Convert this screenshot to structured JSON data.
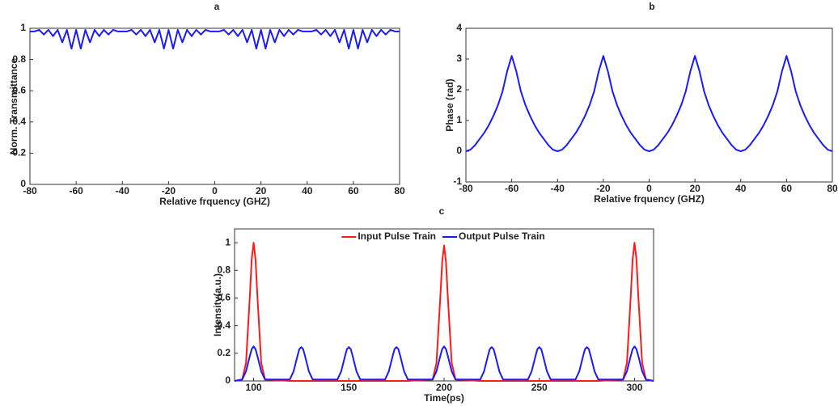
{
  "chart_data": [
    {
      "type": "line",
      "title": "a",
      "xlabel": "Relative frquency (GHZ)",
      "ylabel": "Norm. Transmittance",
      "color": "#1a1aff",
      "x": [
        -80,
        -78,
        -76,
        -74,
        -72,
        -70,
        -68,
        -66,
        -64,
        -62,
        -60,
        -58,
        -56,
        -54,
        -52,
        -50,
        -48,
        -46,
        -44,
        -42,
        -40,
        -38,
        -36,
        -34,
        -32,
        -30,
        -28,
        -26,
        -24,
        -22,
        -20,
        -18,
        -16,
        -14,
        -12,
        -10,
        -8,
        -6,
        -4,
        -2,
        0,
        2,
        4,
        6,
        8,
        10,
        12,
        14,
        16,
        18,
        20,
        22,
        24,
        26,
        28,
        30,
        32,
        34,
        36,
        38,
        40,
        42,
        44,
        46,
        48,
        50,
        52,
        54,
        56,
        58,
        60,
        62,
        64,
        66,
        68,
        70,
        72,
        74,
        76,
        78,
        80
      ],
      "values": [
        0.98,
        0.98,
        0.99,
        0.96,
        0.99,
        0.95,
        0.99,
        0.91,
        0.99,
        0.87,
        0.99,
        0.87,
        0.99,
        0.91,
        0.99,
        0.95,
        0.99,
        0.96,
        0.99,
        0.98,
        0.98,
        0.98,
        0.99,
        0.96,
        0.99,
        0.95,
        0.99,
        0.91,
        0.99,
        0.87,
        0.99,
        0.87,
        0.99,
        0.91,
        0.99,
        0.95,
        0.99,
        0.96,
        0.99,
        0.98,
        0.98,
        0.98,
        0.99,
        0.96,
        0.99,
        0.95,
        0.99,
        0.91,
        0.99,
        0.87,
        0.99,
        0.87,
        0.99,
        0.91,
        0.99,
        0.95,
        0.99,
        0.96,
        0.99,
        0.98,
        0.98,
        0.98,
        0.99,
        0.96,
        0.99,
        0.95,
        0.99,
        0.91,
        0.99,
        0.87,
        0.99,
        0.87,
        0.99,
        0.91,
        0.99,
        0.95,
        0.99,
        0.96,
        0.99,
        0.98,
        0.98
      ],
      "xlim": [
        -80,
        80
      ],
      "xticks": [
        -80,
        -60,
        -40,
        -20,
        0,
        20,
        40,
        60,
        80
      ],
      "ylim": [
        0,
        1
      ],
      "yticks": [
        0,
        0.2,
        0.4,
        0.6,
        0.8,
        1
      ]
    },
    {
      "type": "line",
      "title": "b",
      "xlabel": "Relative frquency (GHZ)",
      "ylabel": "Phase (rad)",
      "color": "#1a1aff",
      "x": [
        -80,
        -78,
        -76,
        -74,
        -72,
        -70,
        -68,
        -66,
        -64,
        -62,
        -60,
        -58,
        -56,
        -54,
        -52,
        -50,
        -48,
        -46,
        -44,
        -42,
        -40,
        -38,
        -36,
        -34,
        -32,
        -30,
        -28,
        -26,
        -24,
        -22,
        -20,
        -18,
        -16,
        -14,
        -12,
        -10,
        -8,
        -6,
        -4,
        -2,
        0,
        2,
        4,
        6,
        8,
        10,
        12,
        14,
        16,
        18,
        20,
        22,
        24,
        26,
        28,
        30,
        32,
        34,
        36,
        38,
        40,
        42,
        44,
        46,
        48,
        50,
        52,
        54,
        56,
        58,
        60,
        62,
        64,
        66,
        68,
        70,
        72,
        74,
        76,
        78,
        80
      ],
      "values": [
        0,
        0.05,
        0.2,
        0.4,
        0.6,
        0.85,
        1.15,
        1.5,
        1.95,
        2.6,
        3.1,
        2.6,
        1.95,
        1.5,
        1.15,
        0.85,
        0.6,
        0.4,
        0.2,
        0.05,
        0,
        0.05,
        0.2,
        0.4,
        0.6,
        0.85,
        1.15,
        1.5,
        1.95,
        2.6,
        3.1,
        2.6,
        1.95,
        1.5,
        1.15,
        0.85,
        0.6,
        0.4,
        0.2,
        0.05,
        0,
        0.05,
        0.2,
        0.4,
        0.6,
        0.85,
        1.15,
        1.5,
        1.95,
        2.6,
        3.1,
        2.6,
        1.95,
        1.5,
        1.15,
        0.85,
        0.6,
        0.4,
        0.2,
        0.05,
        0,
        0.05,
        0.2,
        0.4,
        0.6,
        0.85,
        1.15,
        1.5,
        1.95,
        2.6,
        3.1,
        2.6,
        1.95,
        1.5,
        1.15,
        0.85,
        0.6,
        0.4,
        0.2,
        0.05,
        0
      ],
      "xlim": [
        -80,
        80
      ],
      "xticks": [
        -80,
        -60,
        -40,
        -20,
        0,
        20,
        40,
        60,
        80
      ],
      "ylim": [
        -1,
        4
      ],
      "yticks": [
        -1,
        0,
        1,
        2,
        3,
        4
      ]
    },
    {
      "type": "line",
      "title": "c",
      "xlabel": "Time(ps)",
      "ylabel": "Intensity(a.u.)",
      "legend": "upper center",
      "x": [
        90,
        94,
        96,
        98,
        99,
        100,
        101,
        102,
        104,
        106,
        119,
        121,
        123,
        124,
        125,
        126,
        127,
        129,
        131,
        144,
        146,
        148,
        149,
        150,
        151,
        152,
        154,
        156,
        169,
        171,
        173,
        174,
        175,
        176,
        177,
        179,
        181,
        194,
        196,
        198,
        199,
        200,
        201,
        202,
        204,
        206,
        219,
        221,
        223,
        224,
        225,
        226,
        227,
        229,
        231,
        244,
        246,
        248,
        249,
        250,
        251,
        252,
        254,
        256,
        269,
        271,
        273,
        274,
        275,
        276,
        277,
        279,
        281,
        294,
        296,
        298,
        299,
        300,
        301,
        302,
        304,
        306,
        310
      ],
      "series": [
        {
          "name": "Input Pulse Train",
          "color": "#ff1a1a",
          "values": [
            0,
            0.01,
            0.13,
            0.61,
            0.88,
            1,
            0.88,
            0.61,
            0.13,
            0.01,
            0,
            0,
            0,
            0,
            0,
            0,
            0,
            0,
            0,
            0,
            0,
            0,
            0,
            0,
            0,
            0,
            0,
            0,
            0,
            0,
            0,
            0,
            0,
            0,
            0,
            0,
            0,
            0.01,
            0.13,
            0.6,
            0.86,
            0.98,
            0.86,
            0.6,
            0.13,
            0.01,
            0,
            0,
            0,
            0,
            0,
            0,
            0,
            0,
            0,
            0,
            0,
            0,
            0,
            0,
            0,
            0,
            0,
            0,
            0,
            0,
            0,
            0,
            0,
            0,
            0,
            0,
            0,
            0.01,
            0.13,
            0.61,
            0.88,
            1,
            0.88,
            0.61,
            0.13,
            0.01,
            0
          ]
        },
        {
          "name": "Output Pulse Train",
          "color": "#1a1aff",
          "values": [
            0,
            0.01,
            0.07,
            0.18,
            0.23,
            0.25,
            0.23,
            0.18,
            0.07,
            0.01,
            0.01,
            0.07,
            0.18,
            0.23,
            0.245,
            0.23,
            0.18,
            0.07,
            0.01,
            0.01,
            0.07,
            0.18,
            0.23,
            0.245,
            0.23,
            0.18,
            0.07,
            0.01,
            0.01,
            0.07,
            0.18,
            0.23,
            0.245,
            0.23,
            0.18,
            0.07,
            0.01,
            0.01,
            0.07,
            0.18,
            0.23,
            0.25,
            0.23,
            0.18,
            0.07,
            0.01,
            0.01,
            0.07,
            0.18,
            0.23,
            0.245,
            0.23,
            0.18,
            0.07,
            0.01,
            0.01,
            0.07,
            0.18,
            0.23,
            0.245,
            0.23,
            0.18,
            0.07,
            0.01,
            0.01,
            0.07,
            0.18,
            0.23,
            0.245,
            0.23,
            0.18,
            0.07,
            0.01,
            0.01,
            0.07,
            0.18,
            0.23,
            0.25,
            0.23,
            0.18,
            0.07,
            0.01,
            0
          ]
        }
      ],
      "xlim": [
        90,
        310
      ],
      "xticks": [
        100,
        150,
        200,
        250,
        300
      ],
      "ylim": [
        0,
        1.1
      ],
      "yticks": [
        0,
        0.2,
        0.4,
        0.6,
        0.8,
        1
      ]
    }
  ]
}
